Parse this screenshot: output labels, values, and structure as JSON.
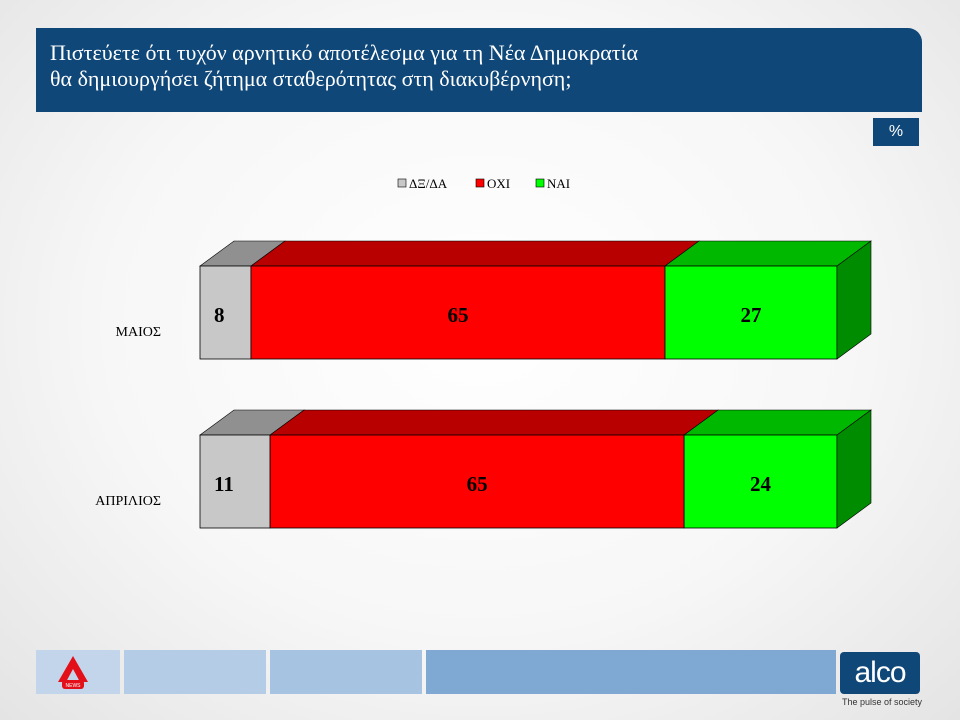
{
  "header": {
    "title_line1": "Πιστεύετε ότι τυχόν αρνητικό αποτέλεσμα για τη Νέα Δημοκρατία",
    "title_line2": "θα δημιουργήσει ζήτημα  σταθερότητας στη διακυβέρνηση;"
  },
  "unit_badge": "%",
  "chart_data": {
    "type": "bar",
    "orientation": "horizontal",
    "stacked": true,
    "percent_stacked": true,
    "three_d": true,
    "categories": [
      "ΜΑΙΟΣ",
      "ΑΠΡΙΛΙΟΣ"
    ],
    "series": [
      {
        "name": "ΔΞ/ΔΑ",
        "values": [
          8,
          11
        ],
        "color": "#c8c8c8"
      },
      {
        "name": "ΟΧΙ",
        "values": [
          65,
          65
        ],
        "color": "#ff0000"
      },
      {
        "name": "ΝΑΙ",
        "values": [
          27,
          24
        ],
        "color": "#00ff00"
      }
    ],
    "data_labels": true,
    "legend_position": "top",
    "xlim": [
      0,
      100
    ],
    "grid": false
  },
  "footer": {
    "brand": "alco",
    "tagline": "The pulse of society",
    "left_logo_text": "NEWS",
    "band_colors": [
      "#c3d5ea",
      "#b5cce6",
      "#a6c3e2",
      "#7fa9d3"
    ]
  }
}
